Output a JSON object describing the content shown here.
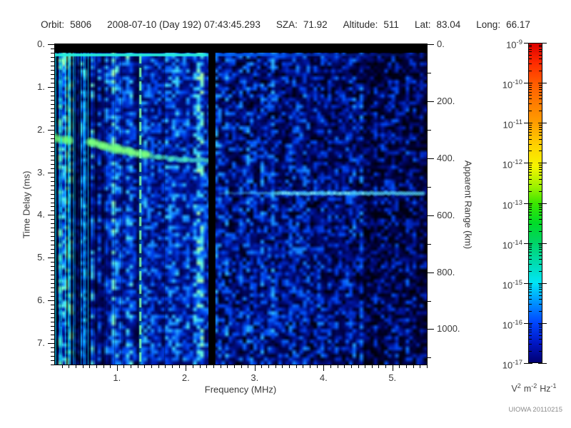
{
  "header": {
    "items": [
      {
        "label": "Orbit:",
        "value": "5806"
      },
      {
        "label": "",
        "value": "2008-07-10 (Day 192) 07:43:45.293"
      },
      {
        "label": "SZA:",
        "value": "71.92"
      },
      {
        "label": "Altitude:",
        "value": "511"
      },
      {
        "label": "Lat:",
        "value": "83.04"
      },
      {
        "label": "Long:",
        "value": "66.17"
      }
    ]
  },
  "chart_data": {
    "type": "heatmap",
    "subtype": "radar-sounder-ionogram-spectrogram",
    "xlabel": "Frequency (MHz)",
    "ylabel_left": "Time Delay (ms)",
    "ylabel_right": "Apparent Range (km)",
    "xlim": [
      0.1,
      5.5
    ],
    "x_major_ticks": [
      1,
      2,
      3,
      4,
      5
    ],
    "x_tick_labels": [
      "1.",
      "2.",
      "3.",
      "4.",
      "5."
    ],
    "x_minor_step": 0.1,
    "ylim_left": [
      0,
      7.5
    ],
    "y_major_ticks_left": [
      0,
      1,
      2,
      3,
      4,
      5,
      6,
      7
    ],
    "y_tick_labels_left": [
      "0.",
      "1.",
      "2.",
      "3.",
      "4.",
      "5.",
      "6.",
      "7."
    ],
    "y_minor_step_left": 0.1,
    "ylim_right": [
      0,
      1124
    ],
    "y_major_ticks_right": [
      0,
      200,
      400,
      600,
      800,
      1000
    ],
    "y_tick_labels_right": [
      "0.",
      "200.",
      "400.",
      "600.",
      "800.",
      "1000."
    ],
    "y_minor_step_right": 100,
    "grid": false,
    "colorbar": {
      "scale": "log",
      "base": "10",
      "tick_exponents": [
        "-9",
        "-10",
        "-11",
        "-12",
        "-13",
        "-14",
        "-15",
        "-16",
        "-17"
      ],
      "units_parts": [
        {
          "base": "V",
          "exp": "2"
        },
        {
          "base": "m",
          "exp": "-2"
        },
        {
          "base": "Hz",
          "exp": "-1"
        }
      ],
      "gradient": [
        {
          "pos": 0.0,
          "color": "#dd0000"
        },
        {
          "pos": 0.06,
          "color": "#ff2a00"
        },
        {
          "pos": 0.125,
          "color": "#ff5c00"
        },
        {
          "pos": 0.25,
          "color": "#ff9e00"
        },
        {
          "pos": 0.32,
          "color": "#ffd200"
        },
        {
          "pos": 0.385,
          "color": "#f6f400"
        },
        {
          "pos": 0.45,
          "color": "#9cf200"
        },
        {
          "pos": 0.5,
          "color": "#3ce600"
        },
        {
          "pos": 0.563,
          "color": "#00dc28"
        },
        {
          "pos": 0.625,
          "color": "#00d467"
        },
        {
          "pos": 0.69,
          "color": "#00dcb2"
        },
        {
          "pos": 0.75,
          "color": "#00e6f6"
        },
        {
          "pos": 0.813,
          "color": "#0092ff"
        },
        {
          "pos": 0.875,
          "color": "#0046ff"
        },
        {
          "pos": 0.94,
          "color": "#0016c4"
        },
        {
          "pos": 1.0,
          "color": "#000072"
        }
      ]
    },
    "features": {
      "transmit_blank_bar": {
        "delay_range_ms": [
          0,
          0.2
        ],
        "color": "#000000"
      },
      "receiver_on_line": {
        "delay_ms": 0.25,
        "bright_until_mhz": 2.33,
        "bright_color": "#28f0dc",
        "faint_color": "#0a2ea0"
      },
      "quiet_gap_mhz": [
        2.33,
        2.43
      ],
      "dark_band_mhz": [
        0.34,
        0.6
      ],
      "interference_lines": [
        {
          "freq_mhz": 0.19,
          "style": "solid-cyan"
        },
        {
          "freq_mhz": 0.3,
          "style": "solid-cyan"
        },
        {
          "freq_mhz": 1.34,
          "style": "dashed-green"
        }
      ],
      "ionosphere_echo_trace": {
        "color": "#6eff78",
        "points_mhz_ms": [
          [
            0.1,
            2.2
          ],
          [
            0.3,
            2.25
          ],
          [
            0.62,
            2.3
          ],
          [
            0.8,
            2.38
          ],
          [
            1.0,
            2.45
          ],
          [
            1.2,
            2.52
          ],
          [
            1.4,
            2.58
          ],
          [
            1.6,
            2.64
          ],
          [
            1.8,
            2.68
          ],
          [
            2.0,
            2.7
          ],
          [
            2.33,
            2.72
          ]
        ]
      },
      "surface_echo_line": {
        "delay_ms": 3.49,
        "freq_range_mhz": [
          2.5,
          5.45
        ],
        "bright_from_mhz": 3.3,
        "color": "#5ae1ff"
      },
      "noise_regions": [
        {
          "freq_range_mhz": [
            0.1,
            2.33
          ],
          "level": "bright",
          "texture": "vertical-striped"
        },
        {
          "freq_range_mhz": [
            2.43,
            3.4
          ],
          "level": "medium",
          "texture": "blobby"
        },
        {
          "freq_range_mhz": [
            3.4,
            4.6
          ],
          "level": "dim",
          "texture": "blobby"
        },
        {
          "freq_range_mhz": [
            4.6,
            5.5
          ],
          "level": "very-dim",
          "texture": "blobby-black"
        }
      ]
    }
  },
  "footer": {
    "credit": "UIOWA 20110215"
  }
}
